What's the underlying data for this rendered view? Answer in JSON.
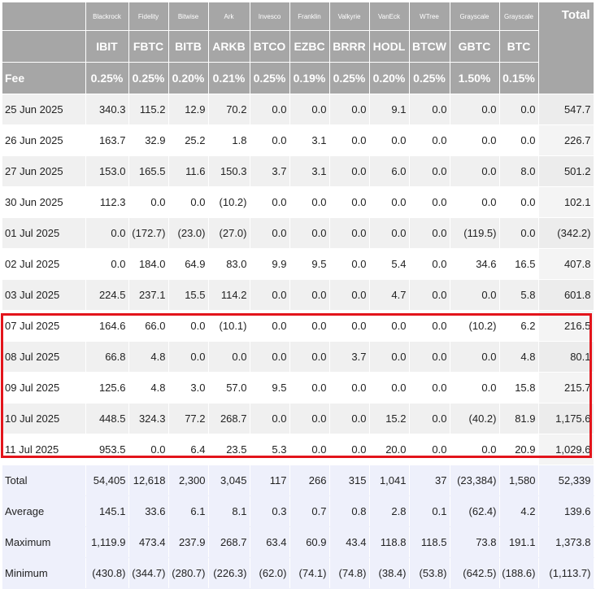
{
  "header": {
    "issuers": [
      "Blackrock",
      "Fidelity",
      "Bitwise",
      "Ark",
      "Invesco",
      "Franklin",
      "Valkyrie",
      "VanEck",
      "WTree",
      "Grayscale",
      "Grayscale"
    ],
    "total_label": "Total",
    "tickers": [
      "IBIT",
      "FBTC",
      "BITB",
      "ARKB",
      "BTCO",
      "EZBC",
      "BRRR",
      "HODL",
      "BTCW",
      "GBTC",
      "BTC"
    ],
    "fee_label": "Fee",
    "fees": [
      "0.25%",
      "0.25%",
      "0.20%",
      "0.21%",
      "0.25%",
      "0.19%",
      "0.25%",
      "0.20%",
      "0.25%",
      "1.50%",
      "0.15%"
    ]
  },
  "rows": [
    {
      "date": "25 Jun 2025",
      "values": [
        "340.3",
        "115.2",
        "12.9",
        "70.2",
        "0.0",
        "0.0",
        "0.0",
        "9.1",
        "0.0",
        "0.0",
        "0.0"
      ],
      "total": "547.7"
    },
    {
      "date": "26 Jun 2025",
      "values": [
        "163.7",
        "32.9",
        "25.2",
        "1.8",
        "0.0",
        "3.1",
        "0.0",
        "0.0",
        "0.0",
        "0.0",
        "0.0"
      ],
      "total": "226.7"
    },
    {
      "date": "27 Jun 2025",
      "values": [
        "153.0",
        "165.5",
        "11.6",
        "150.3",
        "3.7",
        "3.1",
        "0.0",
        "6.0",
        "0.0",
        "0.0",
        "8.0"
      ],
      "total": "501.2"
    },
    {
      "date": "30 Jun 2025",
      "values": [
        "112.3",
        "0.0",
        "0.0",
        "(10.2)",
        "0.0",
        "0.0",
        "0.0",
        "0.0",
        "0.0",
        "0.0",
        "0.0"
      ],
      "total": "102.1"
    },
    {
      "date": "01 Jul 2025",
      "values": [
        "0.0",
        "(172.7)",
        "(23.0)",
        "(27.0)",
        "0.0",
        "0.0",
        "0.0",
        "0.0",
        "0.0",
        "(119.5)",
        "0.0"
      ],
      "total": "(342.2)"
    },
    {
      "date": "02 Jul 2025",
      "values": [
        "0.0",
        "184.0",
        "64.9",
        "83.0",
        "9.9",
        "9.5",
        "0.0",
        "5.4",
        "0.0",
        "34.6",
        "16.5"
      ],
      "total": "407.8"
    },
    {
      "date": "03 Jul 2025",
      "values": [
        "224.5",
        "237.1",
        "15.5",
        "114.2",
        "0.0",
        "0.0",
        "0.0",
        "4.7",
        "0.0",
        "0.0",
        "5.8"
      ],
      "total": "601.8"
    },
    {
      "date": "07 Jul 2025",
      "values": [
        "164.6",
        "66.0",
        "0.0",
        "(10.1)",
        "0.0",
        "0.0",
        "0.0",
        "0.0",
        "0.0",
        "(10.2)",
        "6.2"
      ],
      "total": "216.5"
    },
    {
      "date": "08 Jul 2025",
      "values": [
        "66.8",
        "4.8",
        "0.0",
        "0.0",
        "0.0",
        "0.0",
        "3.7",
        "0.0",
        "0.0",
        "0.0",
        "4.8"
      ],
      "total": "80.1"
    },
    {
      "date": "09 Jul 2025",
      "values": [
        "125.6",
        "4.8",
        "3.0",
        "57.0",
        "9.5",
        "0.0",
        "0.0",
        "0.0",
        "0.0",
        "0.0",
        "15.8"
      ],
      "total": "215.7"
    },
    {
      "date": "10 Jul 2025",
      "values": [
        "448.5",
        "324.3",
        "77.2",
        "268.7",
        "0.0",
        "0.0",
        "0.0",
        "15.2",
        "0.0",
        "(40.2)",
        "81.9"
      ],
      "total": "1,175.6"
    },
    {
      "date": "11 Jul 2025",
      "values": [
        "953.5",
        "0.0",
        "6.4",
        "23.5",
        "5.3",
        "0.0",
        "0.0",
        "20.0",
        "0.0",
        "0.0",
        "20.9"
      ],
      "total": "1,029.6"
    }
  ],
  "summary": [
    {
      "label": "Total",
      "values": [
        "54,405",
        "12,618",
        "2,300",
        "3,045",
        "117",
        "266",
        "315",
        "1,041",
        "37",
        "(23,384)",
        "1,580"
      ],
      "total": "52,339"
    },
    {
      "label": "Average",
      "values": [
        "145.1",
        "33.6",
        "6.1",
        "8.1",
        "0.3",
        "0.7",
        "0.8",
        "2.8",
        "0.1",
        "(62.4)",
        "4.2"
      ],
      "total": "139.6"
    },
    {
      "label": "Maximum",
      "values": [
        "1,119.9",
        "473.4",
        "237.9",
        "268.7",
        "63.4",
        "60.9",
        "43.4",
        "118.8",
        "118.5",
        "73.8",
        "191.1"
      ],
      "total": "1,373.8"
    },
    {
      "label": "Minimum",
      "values": [
        "(430.8)",
        "(344.7)",
        "(280.7)",
        "(226.3)",
        "(62.0)",
        "(74.1)",
        "(74.8)",
        "(38.4)",
        "(53.8)",
        "(642.5)",
        "(188.6)"
      ],
      "total": "(1,113.7)"
    }
  ],
  "colors": {
    "header_bg": "#a6a6a6",
    "negative": "#e0262a",
    "highlight_border": "#e3141b",
    "summary_bg": "#eef0fb"
  }
}
